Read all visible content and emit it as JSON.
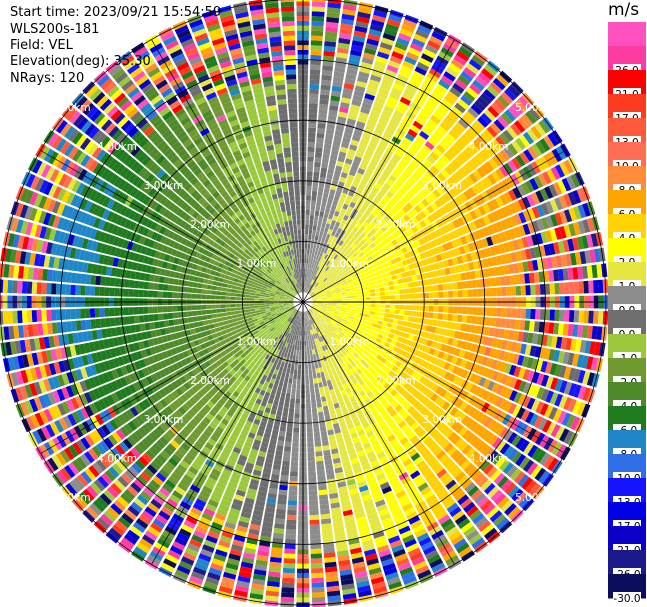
{
  "header": {
    "start_time": "Start time: 2023/09/21 15:54:59",
    "instrument": "WLS200s-181",
    "field": "Field: VEL",
    "elevation": "Elevation(deg): 35.30",
    "nrays": "NRays: 120"
  },
  "colorbar": {
    "unit": "m/s",
    "levels": [
      {
        "label": "-30.0",
        "color": "#0d0d5e"
      },
      {
        "label": "-26.0",
        "color": "#1a1a8c"
      },
      {
        "label": "-21.0",
        "color": "#0a00c8"
      },
      {
        "label": "-17.0",
        "color": "#0000e6"
      },
      {
        "label": "-13.0",
        "color": "#1414ff"
      },
      {
        "label": "-10.0",
        "color": "#2e6ee6"
      },
      {
        "label": "-8.0",
        "color": "#1f86c8"
      },
      {
        "label": "-6.0",
        "color": "#1e7b1e"
      },
      {
        "label": "-4.0",
        "color": "#4e8a2a"
      },
      {
        "label": "-2.0",
        "color": "#6e9a30"
      },
      {
        "label": "-1.0",
        "color": "#9ac83a"
      },
      {
        "label": "0.0",
        "color": "#6e6e6e"
      },
      {
        "label": "0.0",
        "color": "#8c8c8c"
      },
      {
        "label": "1.0",
        "color": "#e6e640"
      },
      {
        "label": "2.0",
        "color": "#ffff00"
      },
      {
        "label": "4.0",
        "color": "#ffd200"
      },
      {
        "label": "6.0",
        "color": "#ffa500"
      },
      {
        "label": "8.0",
        "color": "#ff8c3a"
      },
      {
        "label": "10.0",
        "color": "#ff6e50"
      },
      {
        "label": "13.0",
        "color": "#ff5a3a"
      },
      {
        "label": "17.0",
        "color": "#ff3a1e"
      },
      {
        "label": "21.0",
        "color": "#ff0000"
      },
      {
        "label": "26.0",
        "color": "#ff3aa0"
      },
      {
        "label": "",
        "color": "#ff50c0"
      }
    ]
  },
  "chart_data": {
    "type": "heatmap",
    "projection": "ppi",
    "field": "VEL",
    "units": "m/s",
    "nrays": 120,
    "range_km_max": 5.0,
    "range_rings_km": [
      1,
      2,
      3,
      4,
      5
    ],
    "range_ring_labels": [
      "1.00km",
      "2.00km",
      "3.00km",
      "4.00km",
      "5.00km"
    ],
    "clim": [
      -30,
      30
    ],
    "description_values_by_region": [
      {
        "azimuth_deg": [
          200,
          340
        ],
        "range_km": [
          0,
          3.2
        ],
        "velocity_ms": -5
      },
      {
        "azimuth_deg": [
          20,
          160
        ],
        "range_km": [
          0,
          3.2
        ],
        "velocity_ms": 4
      },
      {
        "azimuth_deg": [
          0,
          360
        ],
        "range_km": [
          4.2,
          5.0
        ],
        "velocity_ms": "noise"
      }
    ]
  }
}
